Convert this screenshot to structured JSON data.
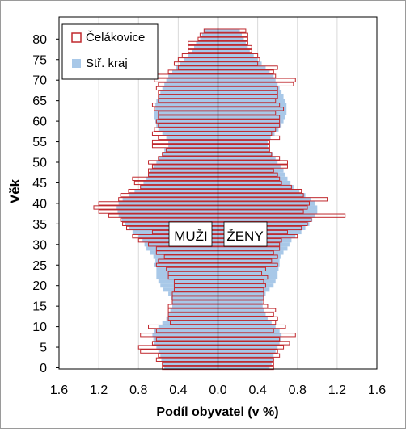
{
  "chart_data": {
    "type": "bar",
    "orientation": "horizontal",
    "subtype": "population-pyramid",
    "ylabel": "Věk",
    "xlabel": "Podíl obyvatel (v %)",
    "xlim": [
      -1.6,
      1.6
    ],
    "ylim": [
      0,
      82
    ],
    "x_ticks": [
      -1.6,
      -1.2,
      -0.8,
      -0.4,
      0.0,
      0.4,
      0.8,
      1.2,
      1.6
    ],
    "x_tick_labels": [
      "1.6",
      "1.2",
      "0.8",
      "0.4",
      "0.0",
      "0.4",
      "0.8",
      "1.2",
      "1.6"
    ],
    "y_ticks": [
      0,
      5,
      10,
      15,
      20,
      25,
      30,
      35,
      40,
      45,
      50,
      55,
      60,
      65,
      70,
      75,
      80
    ],
    "y_tick_labels": [
      "0",
      "5",
      "10",
      "15",
      "20",
      "25",
      "30",
      "35",
      "40",
      "45",
      "50",
      "55",
      "60",
      "65",
      "70",
      "75",
      "80"
    ],
    "grid": "vertical",
    "legend_position": "top-left",
    "annotations": {
      "left": "MUŽI",
      "right": "ŽENY"
    },
    "ages": [
      0,
      1,
      2,
      3,
      4,
      5,
      6,
      7,
      8,
      9,
      10,
      11,
      12,
      13,
      14,
      15,
      16,
      17,
      18,
      19,
      20,
      21,
      22,
      23,
      24,
      25,
      26,
      27,
      28,
      29,
      30,
      31,
      32,
      33,
      34,
      35,
      36,
      37,
      38,
      39,
      40,
      41,
      42,
      43,
      44,
      45,
      46,
      47,
      48,
      49,
      50,
      51,
      52,
      53,
      54,
      55,
      56,
      57,
      58,
      59,
      60,
      61,
      62,
      63,
      64,
      65,
      66,
      67,
      68,
      69,
      70,
      71,
      72,
      73,
      74,
      75,
      76,
      77,
      78,
      79,
      80,
      81,
      82
    ],
    "series": [
      {
        "name": "Čelákovice",
        "style": "outline",
        "color": "#c0282d",
        "men": [
          0.56,
          0.56,
          0.62,
          0.6,
          0.78,
          0.8,
          0.66,
          0.62,
          0.78,
          0.62,
          0.7,
          0.48,
          0.5,
          0.5,
          0.5,
          0.5,
          0.46,
          0.46,
          0.46,
          0.44,
          0.44,
          0.44,
          0.5,
          0.5,
          0.52,
          0.62,
          0.6,
          0.54,
          0.62,
          0.62,
          0.7,
          0.8,
          0.86,
          0.66,
          0.92,
          0.96,
          0.98,
          1.1,
          1.2,
          1.25,
          1.2,
          1.0,
          0.98,
          0.9,
          0.78,
          0.84,
          0.86,
          0.7,
          0.7,
          0.66,
          0.7,
          0.6,
          0.56,
          0.52,
          0.66,
          0.66,
          0.6,
          0.66,
          0.64,
          0.6,
          0.62,
          0.6,
          0.6,
          0.64,
          0.66,
          0.6,
          0.6,
          0.6,
          0.62,
          0.6,
          0.64,
          0.64,
          0.5,
          0.4,
          0.44,
          0.4,
          0.36,
          0.3,
          0.3,
          0.3,
          0.2,
          0.18,
          0.14
        ],
        "women": [
          0.56,
          0.56,
          0.56,
          0.62,
          0.6,
          0.66,
          0.72,
          0.62,
          0.78,
          0.56,
          0.68,
          0.58,
          0.6,
          0.56,
          0.58,
          0.5,
          0.46,
          0.46,
          0.46,
          0.46,
          0.48,
          0.46,
          0.5,
          0.44,
          0.48,
          0.6,
          0.54,
          0.6,
          0.56,
          0.62,
          0.62,
          0.64,
          0.8,
          0.7,
          0.84,
          0.9,
          0.94,
          1.28,
          0.86,
          0.9,
          0.92,
          1.1,
          0.86,
          0.84,
          0.74,
          0.64,
          0.62,
          0.6,
          0.56,
          0.7,
          0.7,
          0.62,
          0.54,
          0.52,
          0.52,
          0.52,
          0.62,
          0.54,
          0.58,
          0.62,
          0.62,
          0.62,
          0.58,
          0.66,
          0.62,
          0.58,
          0.6,
          0.6,
          0.6,
          0.76,
          0.78,
          0.58,
          0.56,
          0.6,
          0.4,
          0.42,
          0.4,
          0.34,
          0.34,
          0.3,
          0.3,
          0.3,
          0.28
        ]
      },
      {
        "name": "Stř. kraj",
        "style": "filled",
        "color": "#a8c8e8",
        "men": [
          0.54,
          0.56,
          0.57,
          0.58,
          0.6,
          0.62,
          0.64,
          0.65,
          0.66,
          0.64,
          0.6,
          0.56,
          0.52,
          0.5,
          0.48,
          0.46,
          0.46,
          0.47,
          0.5,
          0.55,
          0.58,
          0.6,
          0.62,
          0.62,
          0.62,
          0.64,
          0.63,
          0.65,
          0.68,
          0.72,
          0.74,
          0.76,
          0.8,
          0.86,
          0.9,
          0.94,
          0.97,
          1.0,
          1.01,
          1.02,
          1.0,
          0.96,
          0.9,
          0.84,
          0.78,
          0.75,
          0.72,
          0.7,
          0.68,
          0.65,
          0.62,
          0.6,
          0.56,
          0.54,
          0.5,
          0.5,
          0.52,
          0.56,
          0.6,
          0.62,
          0.63,
          0.64,
          0.64,
          0.63,
          0.63,
          0.62,
          0.6,
          0.58,
          0.56,
          0.54,
          0.52,
          0.5,
          0.46,
          0.42,
          0.38,
          0.34,
          0.3,
          0.26,
          0.24,
          0.22,
          0.18,
          0.16,
          0.14
        ],
        "women": [
          0.52,
          0.54,
          0.55,
          0.56,
          0.58,
          0.6,
          0.62,
          0.63,
          0.64,
          0.62,
          0.58,
          0.54,
          0.5,
          0.48,
          0.46,
          0.45,
          0.45,
          0.46,
          0.48,
          0.52,
          0.56,
          0.58,
          0.6,
          0.6,
          0.61,
          0.62,
          0.62,
          0.63,
          0.66,
          0.7,
          0.72,
          0.74,
          0.78,
          0.84,
          0.88,
          0.92,
          0.95,
          0.98,
          1.0,
          1.0,
          0.98,
          0.94,
          0.88,
          0.82,
          0.76,
          0.73,
          0.7,
          0.68,
          0.66,
          0.63,
          0.6,
          0.58,
          0.55,
          0.52,
          0.5,
          0.5,
          0.53,
          0.57,
          0.61,
          0.64,
          0.66,
          0.68,
          0.69,
          0.69,
          0.69,
          0.68,
          0.66,
          0.64,
          0.62,
          0.6,
          0.58,
          0.56,
          0.52,
          0.48,
          0.44,
          0.4,
          0.36,
          0.32,
          0.3,
          0.28,
          0.26,
          0.24,
          0.22
        ]
      }
    ]
  },
  "colors": {
    "axis": "#000000",
    "grid": "#d9d9d9",
    "plot_border": "#000000",
    "legend_border": "#000000",
    "text": "#000000"
  }
}
